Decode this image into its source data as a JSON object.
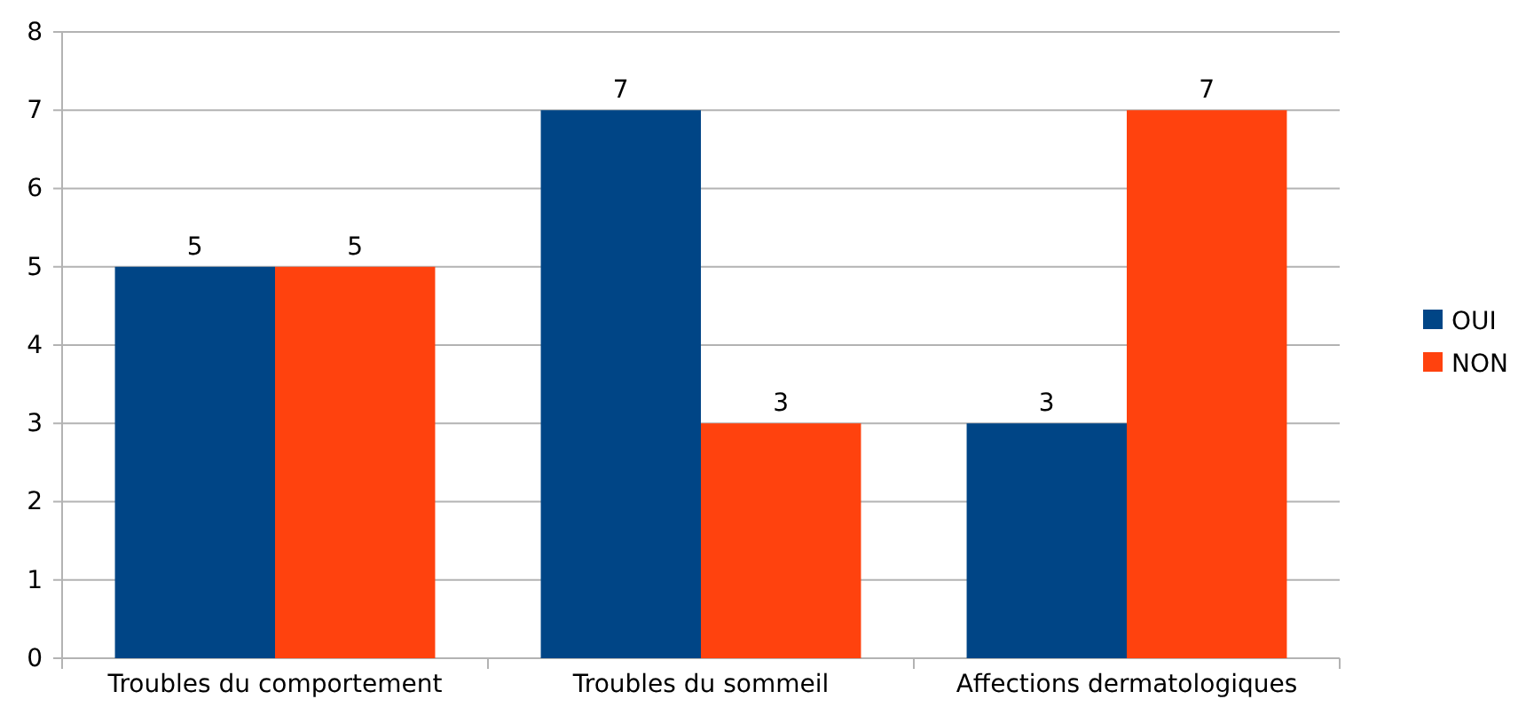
{
  "chart_data": {
    "type": "bar",
    "categories": [
      "Troubles du comportement",
      "Troubles du sommeil",
      "Affections dermatologiques"
    ],
    "series": [
      {
        "name": "OUI",
        "color": "#004586",
        "values": [
          5,
          7,
          3
        ]
      },
      {
        "name": "NON",
        "color": "#ff420e",
        "values": [
          5,
          3,
          7
        ]
      }
    ],
    "ylim": [
      0,
      8
    ],
    "yticks": [
      0,
      1,
      2,
      3,
      4,
      5,
      6,
      7,
      8
    ],
    "grid": "y",
    "legend": "right",
    "data_labels": true
  }
}
